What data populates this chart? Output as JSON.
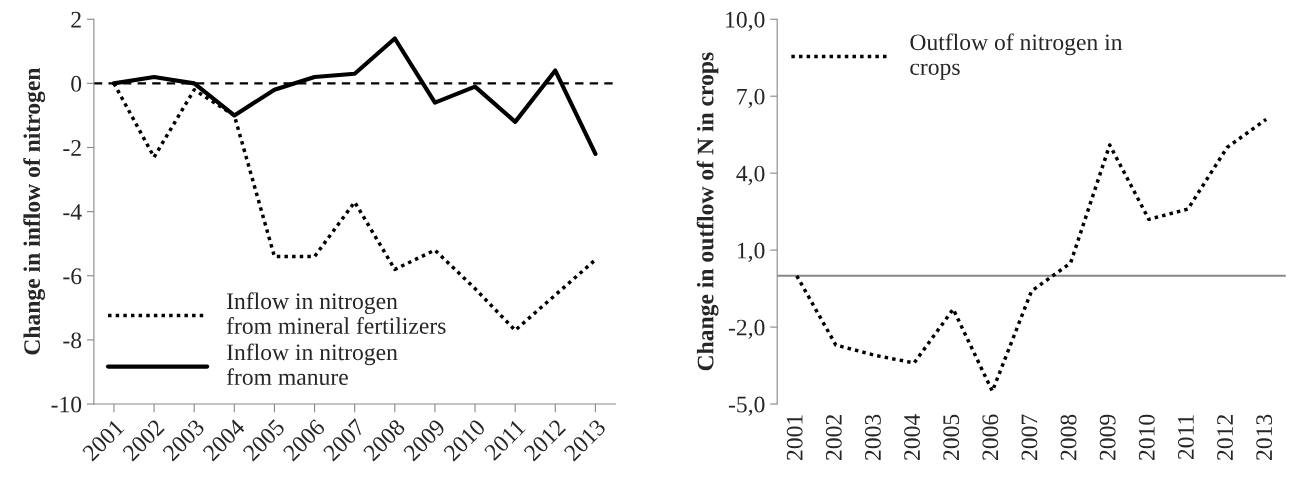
{
  "chart_data": [
    {
      "type": "line",
      "ylabel": "Change in inflow of nitrogen",
      "categories": [
        "2001",
        "2002",
        "2003",
        "2004",
        "2005",
        "2006",
        "2007",
        "2008",
        "2009",
        "2010",
        "2011",
        "2012",
        "2013"
      ],
      "series": [
        {
          "name": "Inflow in nitrogen\nfrom mineral fertilizers",
          "color": "#000000",
          "line_style": "dotted",
          "values": [
            0,
            -2.3,
            -0.2,
            -1.0,
            -5.4,
            -5.4,
            -3.7,
            -5.8,
            -5.2,
            -6.4,
            -7.7,
            -6.6,
            -5.5
          ]
        },
        {
          "name": "Inflow in nitrogen\nfrom manure",
          "color": "#000000",
          "line_style": "solid",
          "values": [
            0,
            0.2,
            0.0,
            -1.0,
            -0.2,
            0.2,
            0.3,
            1.4,
            -0.6,
            -0.1,
            -1.2,
            0.4,
            -2.2
          ]
        }
      ],
      "ylim": [
        -10,
        2
      ],
      "yticks": [
        -10,
        -8,
        -6,
        -4,
        -2,
        0,
        2
      ],
      "ref_lines": [
        {
          "axis": "y",
          "value": 0,
          "color": "#000000",
          "line_style": "dashed"
        }
      ],
      "grid": false,
      "legend": "bottom left",
      "marker": "none"
    },
    {
      "type": "line",
      "ylabel": "Change in outflow of N in crops",
      "categories": [
        "2001",
        "2002",
        "2003",
        "2004",
        "2005",
        "2006",
        "2007",
        "2008",
        "2009",
        "2010",
        "2011",
        "2012",
        "2013"
      ],
      "series": [
        {
          "name": "Outflow of nitrogen in\ncrops",
          "color": "#000000",
          "line_style": "dotted",
          "values": [
            0,
            -2.7,
            -3.1,
            -3.4,
            -1.3,
            -4.5,
            -0.6,
            0.5,
            5.1,
            2.2,
            2.6,
            5.0,
            6.1
          ]
        }
      ],
      "ylim": [
        -5,
        10
      ],
      "yticks": [
        {
          "value": -5,
          "label": "-5,0"
        },
        {
          "value": -2,
          "label": "-2,0"
        },
        {
          "value": 1,
          "label": "1,0"
        },
        {
          "value": 4,
          "label": "4,0"
        },
        {
          "value": 7,
          "label": "7,0"
        },
        {
          "value": 10,
          "label": "10,0"
        }
      ],
      "ref_lines": [
        {
          "axis": "y",
          "value": 0,
          "color": "#888888",
          "line_style": "solid"
        }
      ],
      "grid": false,
      "legend": "top left",
      "marker": "none"
    }
  ]
}
